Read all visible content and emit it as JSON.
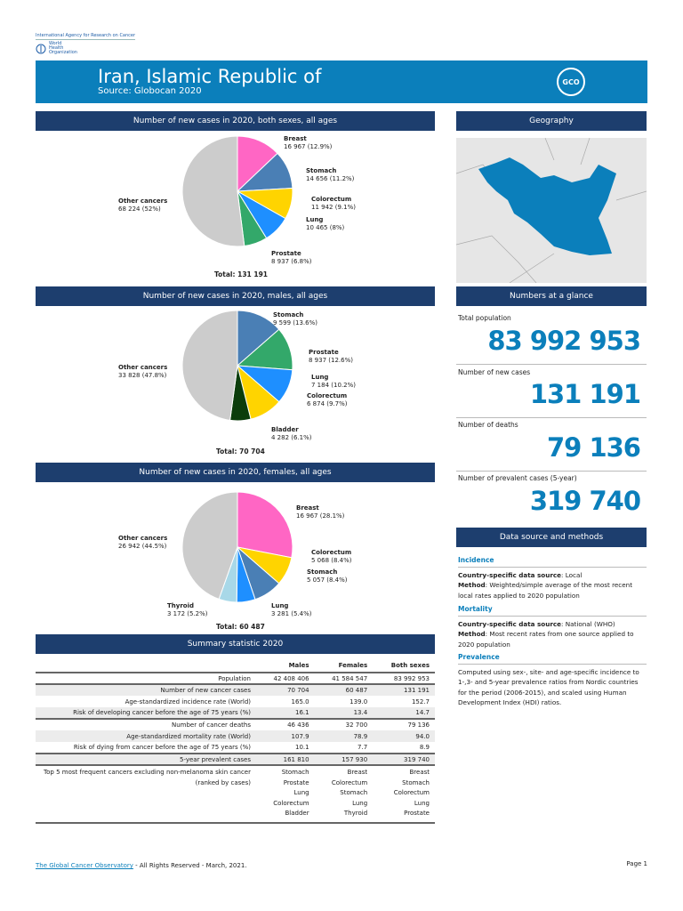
{
  "header": {
    "org": "International Agency for Research on Cancer",
    "who": "World Health Organization",
    "title": "Iran, Islamic Republic of",
    "source": "Source: Globocan 2020",
    "gco_logo": "GCO"
  },
  "colors": {
    "Breast": "#ff66c4",
    "Stomach": "#4a7fb5",
    "Colorectum": "#ffd400",
    "Lung": "#1e8fff",
    "Prostate": "#33a86a",
    "Bladder": "#0b3d0b",
    "Thyroid": "#a8d8e8",
    "Other cancers": "#cccccc",
    "header": "#0b7fbb",
    "bar": "#1d3e6e"
  },
  "charts": [
    {
      "title": "Number of new cases in 2020, both sexes, all ages",
      "total": "Total: 131 191",
      "slices": [
        {
          "name": "Breast",
          "value": 16967,
          "label": "16 967 (12.9%)"
        },
        {
          "name": "Stomach",
          "value": 14656,
          "label": "14 656 (11.2%)"
        },
        {
          "name": "Colorectum",
          "value": 11942,
          "label": "11 942 (9.1%)"
        },
        {
          "name": "Lung",
          "value": 10465,
          "label": "10 465 (8%)"
        },
        {
          "name": "Prostate",
          "value": 8937,
          "label": "8 937 (6.8%)"
        },
        {
          "name": "Other cancers",
          "value": 68224,
          "label": "68 224 (52%)"
        }
      ]
    },
    {
      "title": "Number of new cases in 2020, males, all ages",
      "total": "Total: 70 704",
      "slices": [
        {
          "name": "Stomach",
          "value": 9599,
          "label": "9 599 (13.6%)"
        },
        {
          "name": "Prostate",
          "value": 8937,
          "label": "8 937 (12.6%)"
        },
        {
          "name": "Lung",
          "value": 7184,
          "label": "7 184 (10.2%)"
        },
        {
          "name": "Colorectum",
          "value": 6874,
          "label": "6 874 (9.7%)"
        },
        {
          "name": "Bladder",
          "value": 4282,
          "label": "4 282 (6.1%)"
        },
        {
          "name": "Other cancers",
          "value": 33828,
          "label": "33 828 (47.8%)"
        }
      ]
    },
    {
      "title": "Number of new cases in 2020, females, all ages",
      "total": "Total: 60 487",
      "slices": [
        {
          "name": "Breast",
          "value": 16967,
          "label": "16 967 (28.1%)"
        },
        {
          "name": "Colorectum",
          "value": 5068,
          "label": "5 068 (8.4%)"
        },
        {
          "name": "Stomach",
          "value": 5057,
          "label": "5 057 (8.4%)"
        },
        {
          "name": "Lung",
          "value": 3281,
          "label": "3 281 (5.4%)"
        },
        {
          "name": "Thyroid",
          "value": 3172,
          "label": "3 172 (5.2%)"
        },
        {
          "name": "Other cancers",
          "value": 26942,
          "label": "26 942 (44.5%)"
        }
      ]
    }
  ],
  "geography": {
    "title": "Geography"
  },
  "glance": {
    "title": "Numbers at a glance",
    "items": [
      {
        "label": "Total population",
        "value": "83 992 953"
      },
      {
        "label": "Number of new cases",
        "value": "131 191"
      },
      {
        "label": "Number of deaths",
        "value": "79 136"
      },
      {
        "label": "Number of prevalent cases (5-year)",
        "value": "319 740"
      }
    ]
  },
  "datasource": {
    "title": "Data source and methods",
    "incidence": {
      "heading": "Incidence",
      "src_label": "Country-specific data source",
      "src": ": Local",
      "method_label": "Method",
      "method": ": Weighted/simple average of the most recent local rates applied to 2020 population"
    },
    "mortality": {
      "heading": "Mortality",
      "src_label": "Country-specific data source",
      "src": ": National (WHO)",
      "method_label": "Method",
      "method": ": Most recent rates from one source applied to 2020 population"
    },
    "prevalence": {
      "heading": "Prevalence",
      "text": "Computed using sex-, site- and age-specific incidence to 1-,3- and 5-year prevalence ratios from Nordic countries for the period (2006-2015), and scaled using Human Development Index (HDI) ratios."
    }
  },
  "summary": {
    "title": "Summary statistic 2020",
    "columns": [
      "",
      "Males",
      "Females",
      "Both sexes"
    ],
    "rows": [
      [
        "Population",
        "42 408 406",
        "41 584 547",
        "83 992 953"
      ],
      [
        "Number of new cancer cases",
        "70 704",
        "60 487",
        "131 191"
      ],
      [
        "Age-standardized incidence rate (World)",
        "165.0",
        "139.0",
        "152.7"
      ],
      [
        "Risk of developing cancer before the age of 75 years (%)",
        "16.1",
        "13.4",
        "14.7"
      ],
      [
        "Number of cancer deaths",
        "46 436",
        "32 700",
        "79 136"
      ],
      [
        "Age-standardized mortality rate (World)",
        "107.9",
        "78.9",
        "94.0"
      ],
      [
        "Risk of dying from cancer before the age of 75 years (%)",
        "10.1",
        "7.7",
        "8.9"
      ],
      [
        "5-year prevalent cases",
        "161 810",
        "157 930",
        "319 740"
      ]
    ],
    "top5": {
      "label": "Top 5 most frequent cancers excluding non-melanoma skin cancer (ranked by cases)",
      "males": [
        "Stomach",
        "Prostate",
        "Lung",
        "Colorectum",
        "Bladder"
      ],
      "females": [
        "Breast",
        "Colorectum",
        "Stomach",
        "Lung",
        "Thyroid"
      ],
      "both": [
        "Breast",
        "Stomach",
        "Colorectum",
        "Lung",
        "Prostate"
      ]
    }
  },
  "footer": {
    "link": "The Global Cancer Observatory",
    "text": " - All Rights Reserved - March, 2021.",
    "page": "Page 1"
  }
}
